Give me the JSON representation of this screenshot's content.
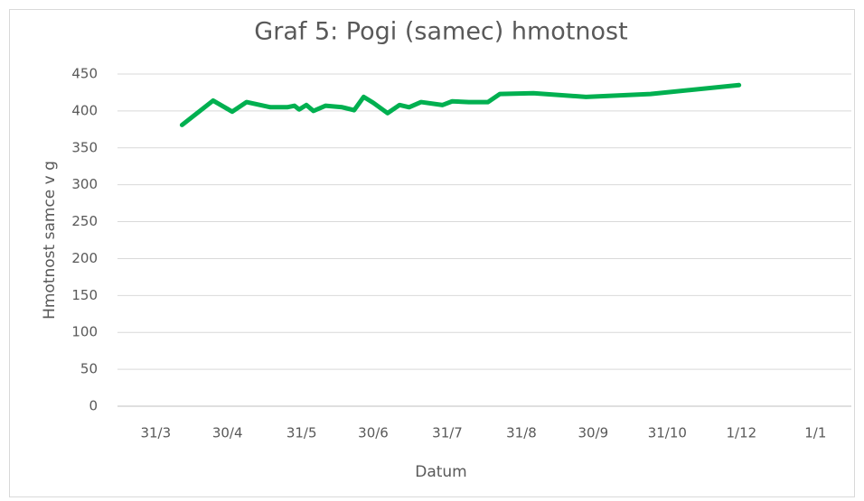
{
  "chart_data": {
    "type": "line",
    "title": "Graf 5: Pogi (samec) hmotnost",
    "x_label": "Datum",
    "y_label": "Hmotnost samce v g",
    "xlim": [
      74,
      381
    ],
    "xticks": [
      {
        "value": 90,
        "label": "31/3"
      },
      {
        "value": 120,
        "label": "30/4"
      },
      {
        "value": 151,
        "label": "31/5"
      },
      {
        "value": 181,
        "label": "30/6"
      },
      {
        "value": 212,
        "label": "31/7"
      },
      {
        "value": 243,
        "label": "31/8"
      },
      {
        "value": 273,
        "label": "30/9"
      },
      {
        "value": 304,
        "label": "31/10"
      },
      {
        "value": 335,
        "label": "1/12"
      },
      {
        "value": 366,
        "label": "1/1"
      }
    ],
    "ylim": [
      0,
      450
    ],
    "yticks": [
      0,
      50,
      100,
      150,
      200,
      250,
      300,
      350,
      400,
      450
    ],
    "grid": true,
    "series": [
      {
        "color": "#00b050",
        "x": [
          101,
          114,
          122,
          128,
          138,
          145,
          148,
          150,
          153,
          156,
          161,
          168,
          173,
          177,
          181,
          187,
          192,
          196,
          201,
          210,
          214,
          221,
          229,
          234,
          248,
          270,
          297,
          334
        ],
        "values": [
          381,
          414,
          399,
          412,
          405,
          405,
          407,
          402,
          408,
          400,
          407,
          405,
          401,
          419,
          411,
          397,
          408,
          405,
          412,
          408,
          413,
          412,
          412,
          423,
          424,
          419,
          423,
          435
        ]
      }
    ]
  }
}
